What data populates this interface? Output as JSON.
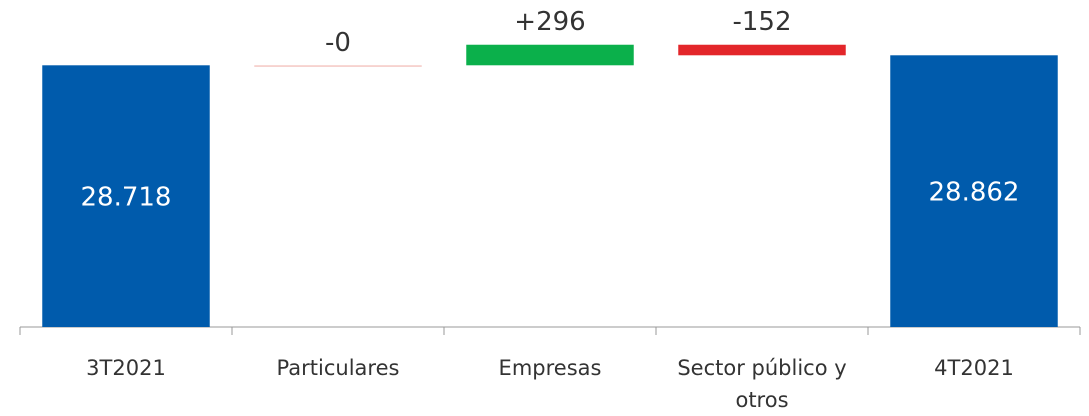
{
  "chart_data": {
    "type": "waterfall",
    "categories": [
      "3T2021",
      "Particulares",
      "Empresas",
      "Sector público y otros",
      "4T2021"
    ],
    "values": [
      28718,
      0,
      296,
      -152,
      28862
    ],
    "value_labels": [
      "28.718",
      "-0",
      "+296",
      "-152",
      "28.862"
    ],
    "is_total": [
      true,
      false,
      false,
      false,
      true
    ],
    "colors": [
      "#005bac",
      "#f4c7c3",
      "#0bb04b",
      "#e3262a",
      "#005bac"
    ],
    "ylim": [
      24950,
      29350
    ]
  }
}
